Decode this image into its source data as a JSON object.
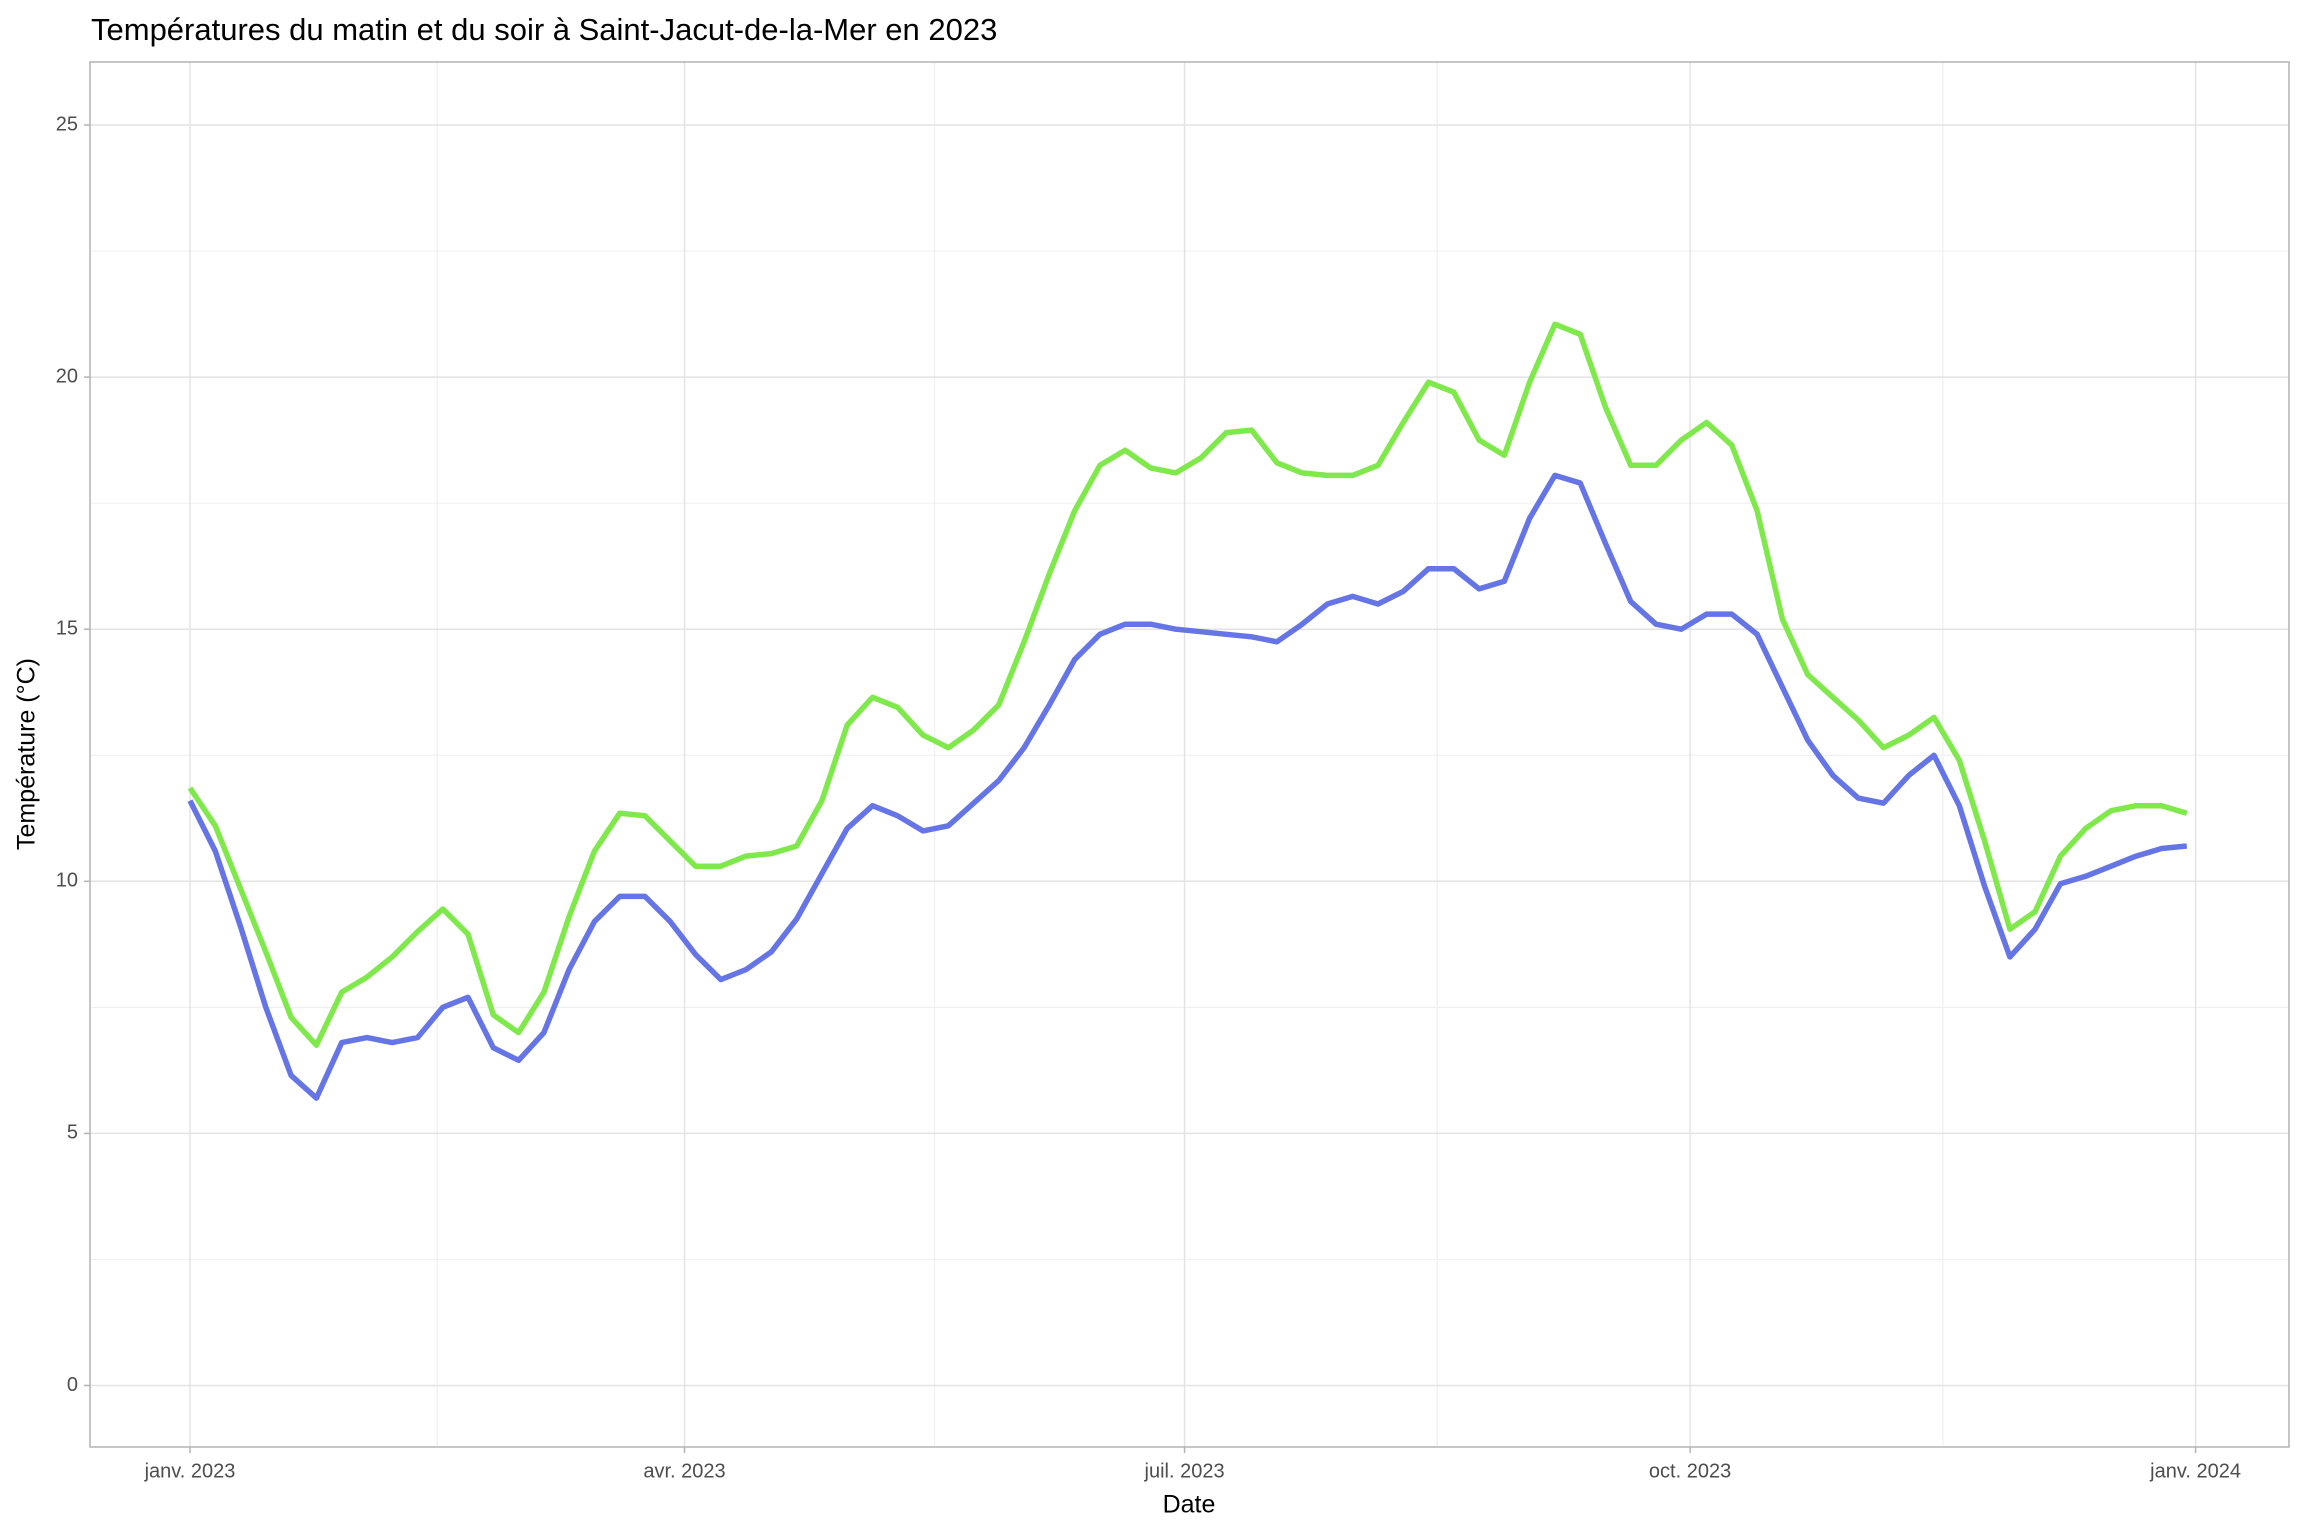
{
  "chart_data": {
    "type": "line",
    "title": "Températures du matin et du soir à Saint-Jacut-de-la-Mer en 2023",
    "x_label": "Date",
    "y_label": "Température (°C)",
    "x": [
      0,
      4.6,
      9.2,
      13.8,
      18.4,
      23,
      27.6,
      32.2,
      36.8,
      41.4,
      46,
      50.6,
      55.2,
      59.8,
      64.4,
      69,
      73.6,
      78.2,
      82.8,
      87.4,
      92,
      96.6,
      101.2,
      105.8,
      110.4,
      115,
      119.6,
      124.2,
      128.8,
      133.4,
      138,
      142.6,
      147.2,
      151.8,
      156.4,
      161,
      165.6,
      170.2,
      174.8,
      179.4,
      184,
      188.6,
      193.2,
      197.8,
      202.4,
      207,
      211.6,
      216.2,
      220.8,
      225.4,
      230,
      234.6,
      239.2,
      243.8,
      248.4,
      253,
      257.6,
      262.2,
      266.8,
      271.4,
      276,
      280.6,
      285.2,
      289.8,
      294.4,
      299,
      303.6,
      308.2,
      312.8,
      317.4,
      322,
      326.6,
      331.2,
      335.8,
      340.4,
      345,
      349.6,
      354.2,
      358.8,
      363.4
    ],
    "series": [
      {
        "color": "#7fe84b",
        "values": [
          11.85,
          11.1,
          9.85,
          8.6,
          7.3,
          6.75,
          7.8,
          8.1,
          8.5,
          9.0,
          9.45,
          8.95,
          7.35,
          7.0,
          7.8,
          9.3,
          10.6,
          11.35,
          11.3,
          10.8,
          10.3,
          10.3,
          10.5,
          10.55,
          10.7,
          11.6,
          13.1,
          13.65,
          13.45,
          12.9,
          12.65,
          13.0,
          13.5,
          14.75,
          16.1,
          17.35,
          18.25,
          18.55,
          18.2,
          18.1,
          18.4,
          18.9,
          18.95,
          18.3,
          18.1,
          18.05,
          18.05,
          18.25,
          19.1,
          19.9,
          19.7,
          18.75,
          18.45,
          19.9,
          21.05,
          20.85,
          19.4,
          18.25,
          18.25,
          18.75,
          19.1,
          18.65,
          17.35,
          15.2,
          14.1,
          13.65,
          13.2,
          12.65,
          12.9,
          13.25,
          12.4,
          10.8,
          9.05,
          9.4,
          10.5,
          11.05,
          11.4,
          11.5,
          11.5,
          11.35
        ]
      },
      {
        "color": "#6675e6",
        "values": [
          11.6,
          10.6,
          9.1,
          7.5,
          6.15,
          5.7,
          6.8,
          6.9,
          6.8,
          6.9,
          7.5,
          7.7,
          6.7,
          6.45,
          7.0,
          8.25,
          9.2,
          9.7,
          9.7,
          9.2,
          8.55,
          8.05,
          8.25,
          8.6,
          9.25,
          10.15,
          11.05,
          11.5,
          11.3,
          11.0,
          11.1,
          11.55,
          12.0,
          12.65,
          13.5,
          14.4,
          14.9,
          15.1,
          15.1,
          15.0,
          14.95,
          14.9,
          14.85,
          14.75,
          15.1,
          15.5,
          15.65,
          15.5,
          15.75,
          16.2,
          16.2,
          15.8,
          15.95,
          17.2,
          18.05,
          17.9,
          16.7,
          15.55,
          15.1,
          15.0,
          15.3,
          15.3,
          14.9,
          13.85,
          12.8,
          12.1,
          11.65,
          11.55,
          12.1,
          12.5,
          11.5,
          9.9,
          8.5,
          9.05,
          9.95,
          10.1,
          10.3,
          10.5,
          10.65,
          10.7
        ]
      }
    ],
    "xlim": [
      -18.2,
      382
    ],
    "xticks": [
      {
        "value": 0,
        "label": "janv. 2023"
      },
      {
        "value": 90,
        "label": "avr. 2023"
      },
      {
        "value": 181,
        "label": "juil. 2023"
      },
      {
        "value": 273,
        "label": "oct. 2023"
      },
      {
        "value": 365,
        "label": "janv. 2024"
      }
    ],
    "ylim": [
      -1.22,
      26.25
    ],
    "yticks": [
      0,
      5,
      10,
      15,
      20,
      25
    ],
    "grid": true
  }
}
